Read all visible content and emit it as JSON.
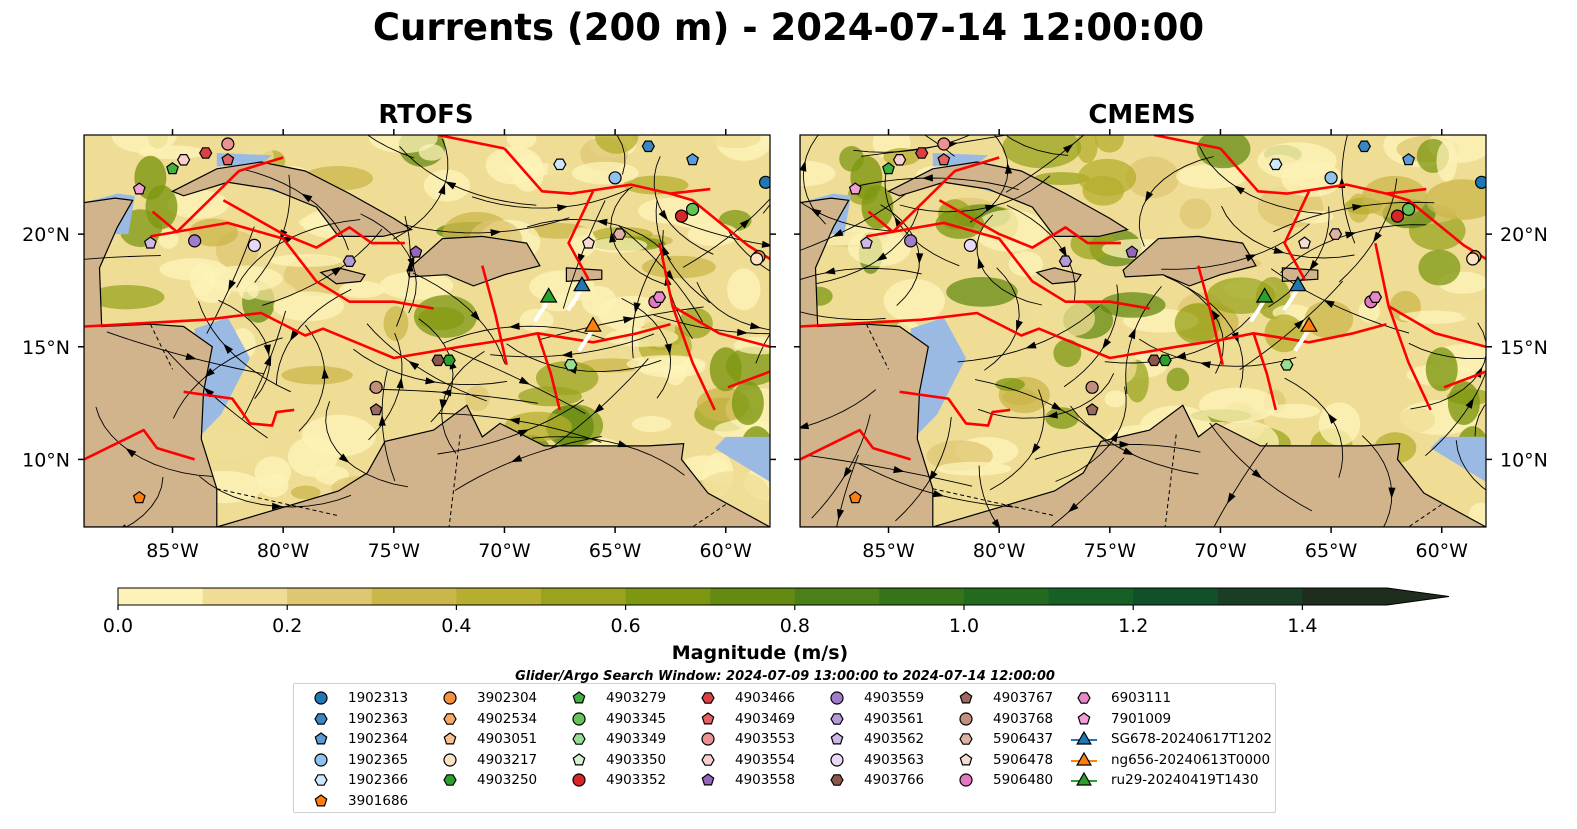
{
  "title": "Currents (200 m) - 2024-07-14 12:00:00",
  "panels": [
    {
      "title": "RTOFS"
    },
    {
      "title": "CMEMS"
    }
  ],
  "axes": {
    "lon_labels": [
      "85°W",
      "80°W",
      "75°W",
      "70°W",
      "65°W",
      "60°W"
    ],
    "lat_labels": [
      "20°N",
      "15°N",
      "10°N"
    ]
  },
  "colorbar": {
    "label": "Magnitude (m/s)",
    "tick_labels": [
      "0.0",
      "0.2",
      "0.4",
      "0.6",
      "0.8",
      "1.0",
      "1.2",
      "1.4"
    ],
    "range": [
      0,
      1.5
    ],
    "extend": "max",
    "colors": [
      "#fdf3b8",
      "#efdd96",
      "#dfc671",
      "#cbb649",
      "#b5ae2e",
      "#9aa31e",
      "#7e9712",
      "#648a12",
      "#4b7f17",
      "#357419",
      "#226a1e",
      "#165f25",
      "#12502a",
      "#1a3d26",
      "#1f2d1f"
    ]
  },
  "search_window": "Glider/Argo Search Window: 2024-07-09 13:00:00 to 2024-07-14 12:00:00",
  "map_colors": {
    "land": "#d2b48c",
    "shallow": "#9ab9e3",
    "boundaries": "#ff0000",
    "streamlines": "#000000"
  },
  "legend": [
    {
      "label": "1902313",
      "marker": "circle",
      "color": "#1f77b4"
    },
    {
      "label": "1902363",
      "marker": "hexagon",
      "color": "#3a86c3"
    },
    {
      "label": "1902364",
      "marker": "pentagon",
      "color": "#5a9bd5"
    },
    {
      "label": "1902365",
      "marker": "circle",
      "color": "#8fc3ee"
    },
    {
      "label": "1902366",
      "marker": "hexagon",
      "color": "#cfe7fa"
    },
    {
      "label": "3901686",
      "marker": "pentagon",
      "color": "#ff7f0e"
    },
    {
      "label": "3902304",
      "marker": "circle",
      "color": "#f5913a"
    },
    {
      "label": "4902534",
      "marker": "hexagon",
      "color": "#f9a866"
    },
    {
      "label": "4903051",
      "marker": "pentagon",
      "color": "#fbc08f"
    },
    {
      "label": "4903217",
      "marker": "circle",
      "color": "#fde2c5"
    },
    {
      "label": "4903250",
      "marker": "hexagon",
      "color": "#2ca02c"
    },
    {
      "label": "4903279",
      "marker": "pentagon",
      "color": "#41b041"
    },
    {
      "label": "4903345",
      "marker": "circle",
      "color": "#66c35a"
    },
    {
      "label": "4903349",
      "marker": "hexagon",
      "color": "#99dd93"
    },
    {
      "label": "4903350",
      "marker": "pentagon",
      "color": "#d5f2cf"
    },
    {
      "label": "4903352",
      "marker": "circle",
      "color": "#d62728"
    },
    {
      "label": "4903466",
      "marker": "hexagon",
      "color": "#dc4141"
    },
    {
      "label": "4903469",
      "marker": "pentagon",
      "color": "#e56262"
    },
    {
      "label": "4903553",
      "marker": "circle",
      "color": "#ec9191"
    },
    {
      "label": "4903554",
      "marker": "hexagon",
      "color": "#f8cece"
    },
    {
      "label": "4903558",
      "marker": "pentagon",
      "color": "#9467bd"
    },
    {
      "label": "4903559",
      "marker": "circle",
      "color": "#a27cca"
    },
    {
      "label": "4903561",
      "marker": "hexagon",
      "color": "#b59ad8"
    },
    {
      "label": "4903562",
      "marker": "pentagon",
      "color": "#cdb8e7"
    },
    {
      "label": "4903563",
      "marker": "circle",
      "color": "#ead8f7"
    },
    {
      "label": "4903766",
      "marker": "hexagon",
      "color": "#8c564b"
    },
    {
      "label": "4903767",
      "marker": "pentagon",
      "color": "#9c6a5e"
    },
    {
      "label": "4903768",
      "marker": "circle",
      "color": "#c08f7e"
    },
    {
      "label": "5906437",
      "marker": "hexagon",
      "color": "#dfb3a3"
    },
    {
      "label": "5906478",
      "marker": "pentagon",
      "color": "#f4dcd3"
    },
    {
      "label": "5906480",
      "marker": "circle",
      "color": "#e377c2"
    },
    {
      "label": "6903111",
      "marker": "hexagon",
      "color": "#e887cb"
    },
    {
      "label": "7901009",
      "marker": "pentagon",
      "color": "#f29fd8"
    },
    {
      "label": "SG678-20240617T1202",
      "marker": "triangle-line",
      "color": "#1f77b4"
    },
    {
      "label": "ng656-20240613T0000",
      "marker": "triangle-line",
      "color": "#ff7f0e"
    },
    {
      "label": "ru29-20240419T1430",
      "marker": "triangle-line",
      "color": "#2ca02c"
    }
  ],
  "gliders": [
    {
      "name": "SG678-20240617T1202",
      "lon": -66.5,
      "lat": 17.6,
      "color": "#1f77b4"
    },
    {
      "name": "ng656-20240613T0000",
      "lon": -66.0,
      "lat": 15.8,
      "color": "#ff7f0e"
    },
    {
      "name": "ru29-20240419T1430",
      "lon": -68.0,
      "lat": 17.1,
      "color": "#2ca02c"
    }
  ],
  "floats": [
    {
      "id": "1902313",
      "lon": -58.2,
      "lat": 22.3
    },
    {
      "id": "1902363",
      "lon": -63.5,
      "lat": 23.9
    },
    {
      "id": "1902364",
      "lon": -61.5,
      "lat": 23.3
    },
    {
      "id": "1902365",
      "lon": -65.0,
      "lat": 22.5
    },
    {
      "id": "1902366",
      "lon": -67.5,
      "lat": 23.1
    },
    {
      "id": "4903279",
      "lon": -85.0,
      "lat": 22.9
    },
    {
      "id": "4903250",
      "lon": -72.5,
      "lat": 14.4
    },
    {
      "id": "4903345",
      "lon": -61.5,
      "lat": 21.1
    },
    {
      "id": "4903349",
      "lon": -67.0,
      "lat": 14.2
    },
    {
      "id": "4903352",
      "lon": -62.0,
      "lat": 20.8
    },
    {
      "id": "4903466",
      "lon": -83.5,
      "lat": 23.6
    },
    {
      "id": "4903469",
      "lon": -82.5,
      "lat": 23.3
    },
    {
      "id": "4903553",
      "lon": -82.5,
      "lat": 24.0
    },
    {
      "id": "4903554",
      "lon": -84.5,
      "lat": 23.3
    },
    {
      "id": "4903558",
      "lon": -74.0,
      "lat": 19.2
    },
    {
      "id": "4903559",
      "lon": -84.0,
      "lat": 19.7
    },
    {
      "id": "4903561",
      "lon": -77.0,
      "lat": 18.8
    },
    {
      "id": "4903562",
      "lon": -86.0,
      "lat": 19.6
    },
    {
      "id": "4903563",
      "lon": -81.3,
      "lat": 19.5
    },
    {
      "id": "4903766",
      "lon": -73.0,
      "lat": 14.4
    },
    {
      "id": "4903767",
      "lon": -75.8,
      "lat": 12.2
    },
    {
      "id": "4903768",
      "lon": -75.8,
      "lat": 13.2
    },
    {
      "id": "5906437",
      "lon": -64.8,
      "lat": 20.0
    },
    {
      "id": "5906478",
      "lon": -66.2,
      "lat": 19.6
    },
    {
      "id": "5906480",
      "lon": -63.2,
      "lat": 17.0
    },
    {
      "id": "6903111",
      "lon": -63.0,
      "lat": 17.2
    },
    {
      "id": "7901009",
      "lon": -86.5,
      "lat": 22.0
    },
    {
      "id": "3902304",
      "lon": -58.5,
      "lat": 19.0
    },
    {
      "id": "3901686",
      "lon": -86.5,
      "lat": 8.3
    },
    {
      "id": "4903217",
      "lon": -58.6,
      "lat": 18.9
    }
  ]
}
